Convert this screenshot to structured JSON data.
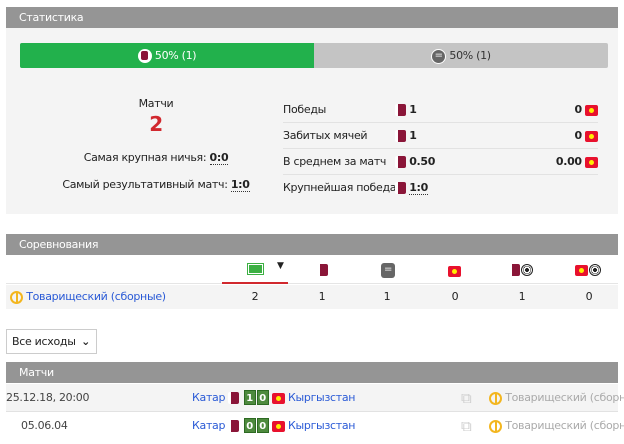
{
  "stats": {
    "title": "Статистика",
    "bar": {
      "left_label": "50% (1)",
      "right_label": "50% (1)",
      "left_percent": 50,
      "left_color": "#22b14c",
      "right_color": "#c4c4c4"
    },
    "matches_label": "Матчи",
    "matches_count": "2",
    "biggest_draw_label": "Самая крупная ничья:",
    "biggest_draw": "0:0",
    "top_scoring_label": "Самый результативный матч:",
    "top_scoring": "1:0",
    "rows": [
      {
        "label": "Победы",
        "left": "1",
        "right": "0"
      },
      {
        "label": "Забитых мячей",
        "left": "1",
        "right": "0"
      },
      {
        "label": "В среднем за матч",
        "left": "0.50",
        "right": "0.00"
      },
      {
        "label": "Крупнейшая победа",
        "left": "1:0",
        "right": ""
      }
    ]
  },
  "competitions": {
    "title": "Соревнования",
    "icons": [
      "pitch-icon",
      "qatar-flag-icon",
      "draw-icon",
      "kyrgyzstan-flag-icon",
      "qatar-goals-icon",
      "kyrgyzstan-goals-icon"
    ],
    "rows": [
      {
        "name": "Товарищеский (сборные)",
        "values": [
          "2",
          "1",
          "1",
          "0",
          "1",
          "0"
        ]
      }
    ]
  },
  "filter": {
    "selected": "Все исходы"
  },
  "matches": {
    "title": "Матчи",
    "rows": [
      {
        "date": "25.12.18, 20:00",
        "home": "Катар",
        "home_score": "1",
        "away_score": "0",
        "away": "Кыргызстан",
        "competition": "Товарищеский (сборн"
      },
      {
        "date": "05.06.04",
        "home": "Катар",
        "home_score": "0",
        "away_score": "0",
        "away": "Кыргызстан",
        "competition": "Товарищеский (сборн"
      }
    ]
  }
}
